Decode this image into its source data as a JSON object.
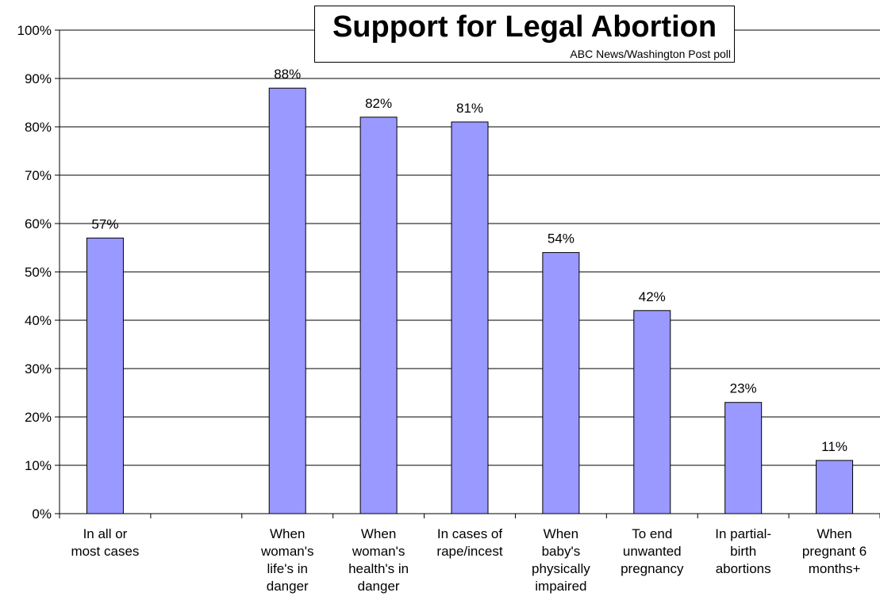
{
  "chart_data": {
    "type": "bar",
    "title": "Support for Legal Abortion",
    "subtitle": "ABC News/Washington Post poll",
    "categories": [
      [
        "In all or",
        "most cases"
      ],
      [],
      [
        "When",
        "woman's",
        "life's in",
        "danger"
      ],
      [
        "When",
        "woman's",
        "health's in",
        "danger"
      ],
      [
        "In cases of",
        "rape/incest"
      ],
      [
        "When",
        "baby's",
        "physically",
        "impaired"
      ],
      [
        "To end",
        "unwanted",
        "pregnancy"
      ],
      [
        "In partial-",
        "birth",
        "abortions"
      ],
      [
        "When",
        "pregnant 6",
        "months+"
      ]
    ],
    "values": [
      57,
      null,
      88,
      82,
      81,
      54,
      42,
      23,
      11
    ],
    "data_labels": [
      "57%",
      "",
      "88%",
      "82%",
      "81%",
      "54%",
      "42%",
      "23%",
      "11%"
    ],
    "ylim": [
      0,
      100
    ],
    "yticks": [
      "0%",
      "10%",
      "20%",
      "30%",
      "40%",
      "50%",
      "60%",
      "70%",
      "80%",
      "90%",
      "100%"
    ],
    "grid": true,
    "legend": "none",
    "colors": {
      "bar": "#9999ff",
      "bar_stroke": "#000000",
      "grid": "#000000",
      "axis": "#000000",
      "background": "#ffffff"
    }
  }
}
